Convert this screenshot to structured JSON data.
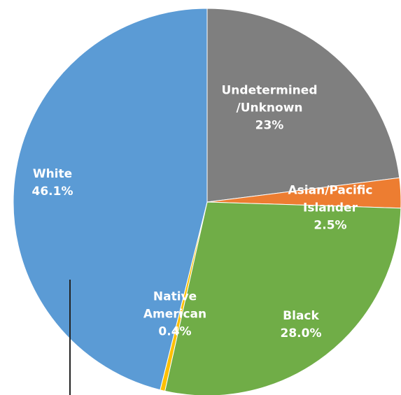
{
  "chart_data": {
    "type": "pie",
    "categories": [
      "Undetermined\n/Unknown",
      "Asian/Pacific\nIslander",
      "Black",
      "Native\nAmerican",
      "White"
    ],
    "values": [
      23,
      2.5,
      28.0,
      0.4,
      46.1
    ],
    "value_labels": [
      "23%",
      "2.5%",
      "28.0%",
      "0.4%",
      "46.1%"
    ],
    "colors": [
      "#7f7f7f",
      "#ed7d31",
      "#70ad47",
      "#ffc000",
      "#5b9bd5"
    ]
  }
}
